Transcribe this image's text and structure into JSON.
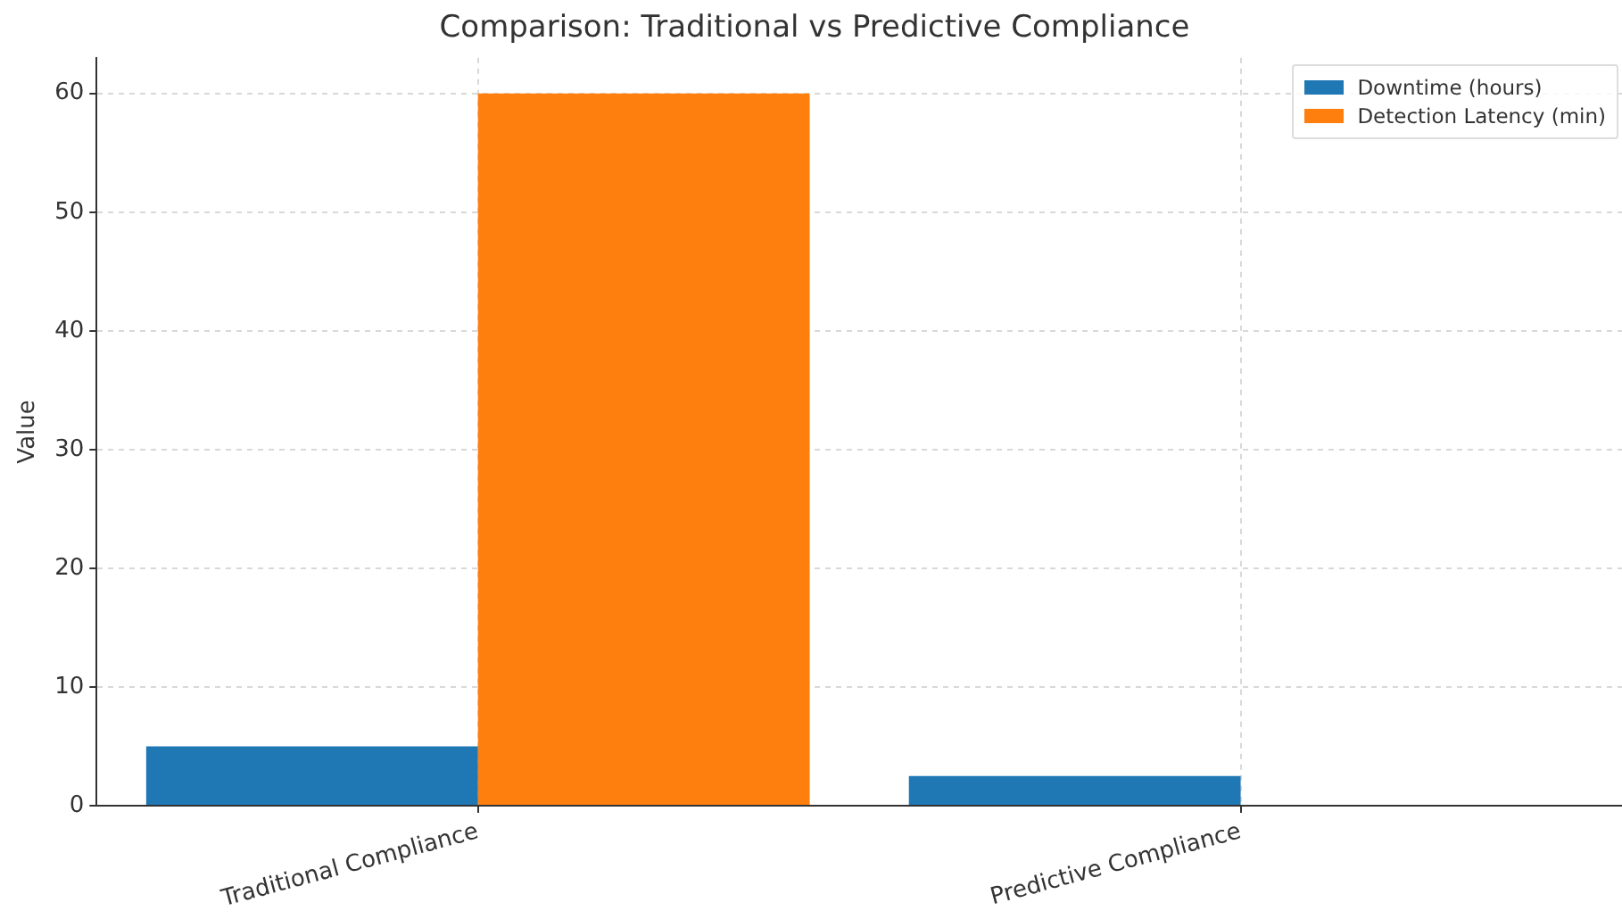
{
  "chart_data": {
    "type": "bar",
    "title": "Comparison: Traditional vs Predictive Compliance",
    "ylabel": "Value",
    "categories": [
      "Traditional Compliance",
      "Predictive Compliance"
    ],
    "series": [
      {
        "name": "Downtime (hours)",
        "color": "#1f77b4",
        "values": [
          5,
          2.5
        ]
      },
      {
        "name": "Detection Latency (min)",
        "color": "#ff7f0e",
        "values": [
          60,
          0
        ]
      }
    ],
    "ylim": [
      0,
      63
    ],
    "yticks": [
      0,
      10,
      20,
      30,
      40,
      50,
      60
    ],
    "grid": true,
    "legend": "top right"
  }
}
